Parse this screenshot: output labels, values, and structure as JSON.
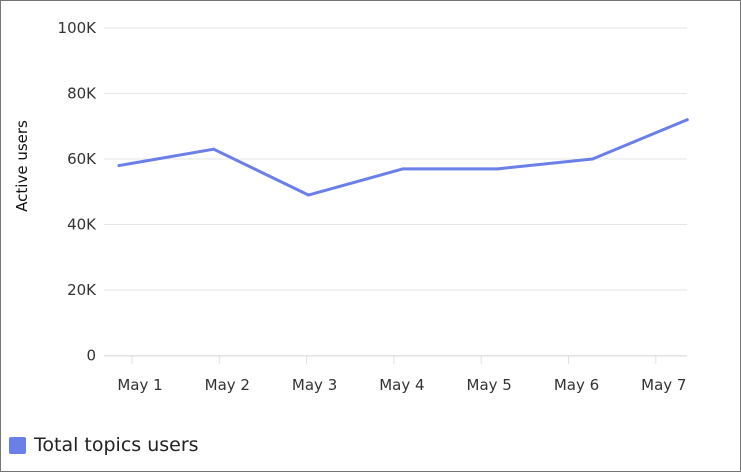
{
  "chart_data": {
    "type": "line",
    "title": "",
    "xlabel": "",
    "ylabel": "Active users",
    "categories": [
      "May 1",
      "May 2",
      "May 3",
      "May 4",
      "May 5",
      "May 6",
      "May 7"
    ],
    "y_ticks": [
      "100K",
      "80K",
      "60K",
      "40K",
      "20K",
      "0"
    ],
    "ylim": [
      0,
      100000
    ],
    "grid": true,
    "legend_position": "bottom-left",
    "series": [
      {
        "name": "Total topics users",
        "color": "#6B7FE8",
        "values": [
          58000,
          63000,
          49000,
          57000,
          57000,
          60000,
          72000
        ]
      }
    ]
  }
}
